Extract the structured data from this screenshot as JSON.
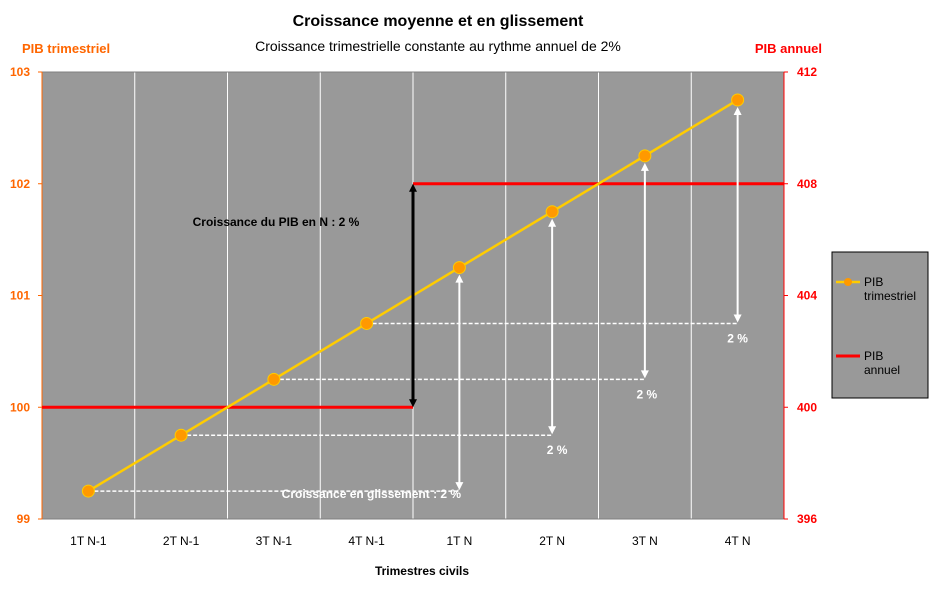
{
  "colors": {
    "plot_bg": "#999999",
    "left_axis": "#ff6600",
    "right_axis": "#ff0000",
    "quarterly_line": "#ffcc00",
    "quarterly_marker": "#ff9900",
    "annual_line": "#ff0000",
    "gridline": "#ffffff",
    "legend_bg": "#999999",
    "annot_white": "#ffffff",
    "annot_black": "#000000"
  },
  "chart_data": {
    "type": "line",
    "title": "Croissance moyenne et en glissement",
    "subtitle": "Croissance trimestrielle constante au rythme annuel de  2%",
    "xlabel": "Trimestres civils",
    "ylabel_left": "PIB trimestriel",
    "ylabel_right": "PIB annuel",
    "categories": [
      "1T N-1",
      "2T N-1",
      "3T N-1",
      "4T N-1",
      "1T N",
      "2T N",
      "3T N",
      "4T N"
    ],
    "ylim_left": [
      99,
      103
    ],
    "yticks_left": [
      "99",
      "100",
      "101",
      "102",
      "103"
    ],
    "ylim_right": [
      396,
      412
    ],
    "yticks_right": [
      "396",
      "400",
      "404",
      "408",
      "412"
    ],
    "grid": "vertical",
    "legend_position": "right",
    "series": [
      {
        "name": "PIB trimestriel",
        "axis": "left",
        "values": [
          99.25,
          99.75,
          100.25,
          100.75,
          101.25,
          101.75,
          102.25,
          102.75
        ]
      },
      {
        "name": "PIB annuel",
        "axis": "right",
        "segments": [
          {
            "from": "1T N-1",
            "to": "4T N-1",
            "value": 400
          },
          {
            "from": "1T N",
            "to": "4T N",
            "value": 408
          }
        ]
      }
    ],
    "annotations": {
      "annual_growth": {
        "text": "Croissance du PIB en N : 2 %",
        "from_value": 400,
        "to_value": 408
      },
      "yoy": [
        {
          "text": "Croissance en glissement :  2 %",
          "from_cat": "1T N-1",
          "to_cat": "1T N"
        },
        {
          "text": "2 %",
          "from_cat": "2T N-1",
          "to_cat": "2T N"
        },
        {
          "text": "2 %",
          "from_cat": "3T N-1",
          "to_cat": "3T N"
        },
        {
          "text": "2 %",
          "from_cat": "4T N-1",
          "to_cat": "4T N"
        }
      ]
    }
  }
}
